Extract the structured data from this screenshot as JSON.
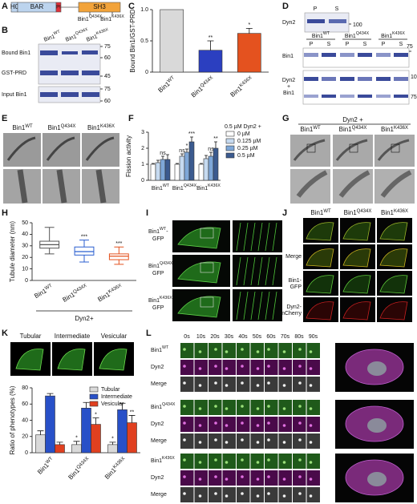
{
  "panel_labels": [
    "A",
    "B",
    "C",
    "D",
    "E",
    "F",
    "G",
    "H",
    "I",
    "J",
    "K",
    "L"
  ],
  "a": {
    "segments": [
      "H0",
      "BAR",
      "PI",
      "SH3"
    ],
    "truncations": [
      "Bin1Q434X",
      "Bin1K436X"
    ]
  },
  "b": {
    "columns": [
      "Bin1WT",
      "Bin1Q434X",
      "Bin1K436X"
    ],
    "rows": [
      "Bound Bin1",
      "GST-PRD",
      "Input Bin1"
    ],
    "markers": [
      75,
      60,
      45,
      75,
      60
    ]
  },
  "d": {
    "dyn2_label": "Dyn2",
    "dyn2_lanes": [
      "P",
      "S"
    ],
    "dyn2_marker": 100,
    "columns": [
      "Bin1WT",
      "Bin1Q434X",
      "Bin1K436X"
    ],
    "lanes": [
      "P",
      "S",
      "P",
      "S",
      "P",
      "S"
    ],
    "bin1_label": "Bin1",
    "bin1_marker": 75,
    "mix_label": [
      "Dyn2",
      "+",
      "Bin1"
    ],
    "mix_markers": [
      100,
      75
    ]
  },
  "e": {
    "columns": [
      "Bin1WT",
      "Bin1Q434X",
      "Bin1K436X"
    ]
  },
  "g": {
    "title": "Dyn2 +",
    "columns": [
      "Bin1WT",
      "Bin1Q434X",
      "Bin1K436X"
    ]
  },
  "i": {
    "rows": [
      [
        "Bin1WT-",
        "GFP"
      ],
      [
        "Bin1Q434X-",
        "GFP"
      ],
      [
        "Bin1K436X-",
        "GFP"
      ]
    ]
  },
  "j": {
    "columns": [
      "Bin1WT",
      "Bin1Q434X",
      "Bin1K436X"
    ],
    "rows": [
      "Merge",
      "Bin1-",
      "GFP",
      "Dyn2-",
      "mCherry"
    ]
  },
  "k": {
    "phenotypes": [
      "Tubular",
      "Intermediate",
      "Vesicular"
    ]
  },
  "l": {
    "times": [
      "0s",
      "10s",
      "20s",
      "30s",
      "40s",
      "50s",
      "60s",
      "70s",
      "80s",
      "90s"
    ],
    "groups": [
      {
        "rows": [
          "Bin1WT",
          "Dyn2",
          "Merge"
        ]
      },
      {
        "rows": [
          "Bin1Q434X",
          "Dyn2",
          "Merge"
        ]
      },
      {
        "rows": [
          "Bin1K436X",
          "Dyn2",
          "Merge"
        ]
      }
    ]
  },
  "chart_data": [
    {
      "type": "bar",
      "y_label": "Bound Bin1/GST-PRD",
      "categories": [
        "Bin1WT",
        "Bin1Q434X",
        "Bin1K436X"
      ],
      "values": [
        1.0,
        0.35,
        0.62
      ],
      "errors": [
        null,
        0.15,
        0.08
      ],
      "colors": [
        "#d9d9d9",
        "#2b3fc0",
        "#e4521f"
      ],
      "annotations": [
        null,
        "**",
        "*"
      ],
      "ylim": [
        0,
        1.0
      ],
      "yticks": [
        0,
        0.5,
        {
          "value": 1.0,
          "label": "1.0"
        }
      ]
    },
    {
      "type": "bar",
      "y_label": "Fission activity",
      "legend_title": "0.5 µM Dyn2 +",
      "categories": [
        "Bin1WT",
        "Bin1Q434X",
        "Bin1K436X"
      ],
      "series": [
        {
          "name": "0 µM",
          "color": "#ffffff",
          "values": [
            1.0,
            1.0,
            1.0
          ],
          "errors": [
            0.05,
            0.05,
            0.05
          ],
          "annotations": [
            null,
            null,
            null
          ]
        },
        {
          "name": "0.125 µM",
          "color": "#c6daf0",
          "values": [
            1.1,
            1.5,
            1.35
          ],
          "errors": [
            0.15,
            0.15,
            0.2
          ],
          "annotations": [
            null,
            "ns",
            null
          ]
        },
        {
          "name": "0.25 µM",
          "color": "#7ea7d8",
          "values": [
            1.3,
            1.75,
            1.5
          ],
          "errors": [
            0.2,
            0.2,
            0.25
          ],
          "annotations": [
            "ns",
            "*",
            "ns"
          ]
        },
        {
          "name": "0.5 µM",
          "color": "#3b5a8f",
          "values": [
            1.3,
            2.4,
            2.0
          ],
          "errors": [
            0.3,
            0.3,
            0.4
          ],
          "annotations": [
            null,
            "***",
            "**"
          ]
        }
      ],
      "ylim": [
        0,
        3
      ],
      "yticks": [
        0,
        1,
        2,
        3
      ]
    },
    {
      "type": "box",
      "y_label": "Tubule diameter (nm)",
      "x_label": "Dyn2+",
      "categories": [
        "Bin1WT",
        "Bin1Q434X",
        "Bin1K436X"
      ],
      "colors": [
        "#555555",
        "#2b5fd0",
        "#e4521f"
      ],
      "stats": [
        {
          "min": 23,
          "q1": 28,
          "median": 31,
          "q3": 34,
          "max": 46
        },
        {
          "min": 16,
          "q1": 22,
          "median": 25,
          "q3": 29,
          "max": 35
        },
        {
          "min": 14,
          "q1": 18,
          "median": 21,
          "q3": 23,
          "max": 29
        }
      ],
      "annotations": [
        null,
        "***",
        "***"
      ],
      "ylim": [
        0,
        50
      ],
      "yticks": [
        0,
        10,
        20,
        30,
        40,
        50
      ]
    },
    {
      "type": "bar",
      "y_label": "Ratio of phenotypes (%)",
      "categories": [
        "Bin1WT",
        "Bin1Q434X",
        "Bin1K436X"
      ],
      "series": [
        {
          "name": "Tubular",
          "color": "#d9d9d9",
          "values": [
            22,
            10,
            10
          ],
          "errors": [
            5,
            4,
            3
          ],
          "annotations": [
            null,
            "*",
            "*"
          ]
        },
        {
          "name": "Intermediate",
          "color": "#2850c8",
          "values": [
            70,
            55,
            53
          ],
          "errors": [
            3,
            7,
            8
          ],
          "annotations": [
            null,
            null,
            null
          ]
        },
        {
          "name": "Vesicular",
          "color": "#e04020",
          "values": [
            10,
            35,
            37
          ],
          "errors": [
            3,
            8,
            9
          ],
          "annotations": [
            null,
            "*",
            "**"
          ]
        }
      ],
      "ylim": [
        0,
        80
      ],
      "yticks": [
        0,
        20,
        40,
        60,
        80
      ]
    }
  ]
}
